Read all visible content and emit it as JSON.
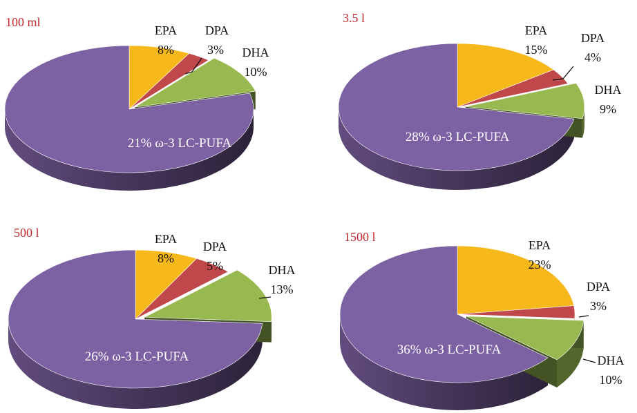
{
  "colors": {
    "epa": "#F7B81B",
    "dpa": "#C0474A",
    "dha": "#97B950",
    "other": "#7D62A3",
    "volume_text": "#C0282E"
  },
  "chart_data": [
    {
      "type": "pie",
      "volume_label": "100 ml",
      "center_label": "21% ω-3 LC-PUFA",
      "slices": [
        {
          "name": "EPA",
          "value": 8,
          "label": "8%"
        },
        {
          "name": "DPA",
          "value": 3,
          "label": "3%"
        },
        {
          "name": "DHA",
          "value": 10,
          "label": "10%"
        },
        {
          "name": "",
          "value": 79
        }
      ]
    },
    {
      "type": "pie",
      "volume_label": "3.5 l",
      "center_label": "28% ω-3 LC-PUFA",
      "slices": [
        {
          "name": "EPA",
          "value": 15,
          "label": "15%"
        },
        {
          "name": "DPA",
          "value": 4,
          "label": "4%"
        },
        {
          "name": "DHA",
          "value": 9,
          "label": "9%"
        },
        {
          "name": "",
          "value": 72
        }
      ]
    },
    {
      "type": "pie",
      "volume_label": "500 l",
      "center_label": "26% ω-3 LC-PUFA",
      "slices": [
        {
          "name": "EPA",
          "value": 8,
          "label": "8%"
        },
        {
          "name": "DPA",
          "value": 5,
          "label": "5%"
        },
        {
          "name": "DHA",
          "value": 13,
          "label": "13%"
        },
        {
          "name": "",
          "value": 74
        }
      ]
    },
    {
      "type": "pie",
      "volume_label": "1500 l",
      "center_label": "36% ω-3 LC-PUFA",
      "slices": [
        {
          "name": "EPA",
          "value": 23,
          "label": "23%"
        },
        {
          "name": "DPA",
          "value": 3,
          "label": "3%"
        },
        {
          "name": "DHA",
          "value": 10,
          "label": "10%"
        },
        {
          "name": "",
          "value": 64
        }
      ]
    }
  ]
}
